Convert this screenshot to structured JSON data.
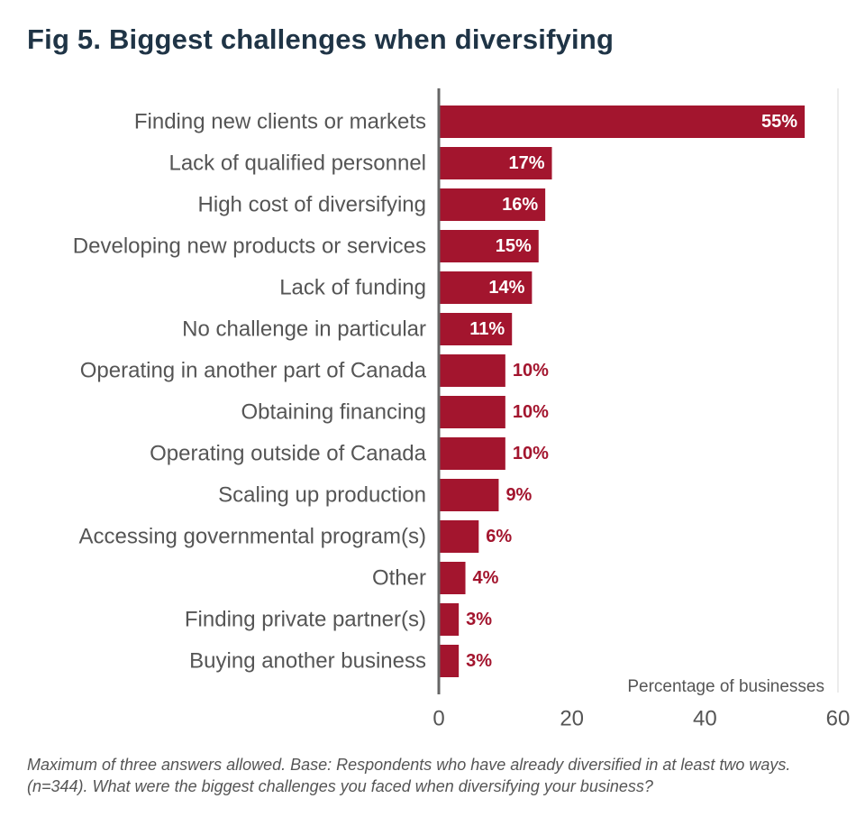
{
  "title": "Fig 5. Biggest challenges when diversifying",
  "footnote": "Maximum of three answers allowed. Base: Respondents who have already diversified in at least two ways. (n=344). What were the biggest challenges you faced when diversifying your business?",
  "colors": {
    "bar": "#a3152e",
    "title": "#1f3446",
    "text": "#555555",
    "axis": "#666666",
    "grid": "#d9d9d9"
  },
  "chart_data": {
    "type": "bar",
    "orientation": "horizontal",
    "categories": [
      "Finding new clients or markets",
      "Lack of qualified personnel",
      "High cost of diversifying",
      "Developing new products or services",
      "Lack of funding",
      "No challenge in particular",
      "Operating in another part of Canada",
      "Obtaining financing",
      "Operating outside of Canada",
      "Scaling up production",
      "Accessing governmental program(s)",
      "Other",
      "Finding private partner(s)",
      "Buying another business"
    ],
    "values": [
      55,
      17,
      16,
      15,
      14,
      11,
      10,
      10,
      10,
      9,
      6,
      4,
      3,
      3
    ],
    "value_labels": [
      "55%",
      "17%",
      "16%",
      "15%",
      "14%",
      "11%",
      "10%",
      "10%",
      "10%",
      "9%",
      "6%",
      "4%",
      "3%",
      "3%"
    ],
    "xlabel": "Percentage of businesses",
    "xlim": [
      0,
      60
    ],
    "xticks": [
      0,
      20,
      40,
      60
    ],
    "grid": false
  }
}
